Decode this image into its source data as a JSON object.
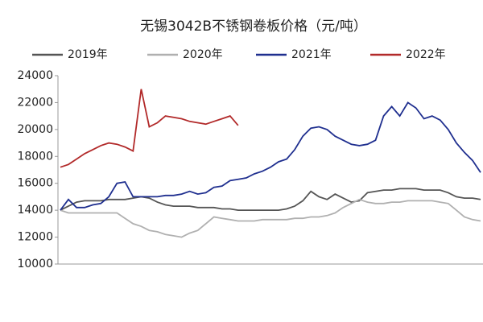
{
  "chart_data": {
    "type": "line",
    "title": "无锡3042B不锈钢卷板价格（元/吨）",
    "categories": [
      null,
      null,
      null,
      null,
      null,
      null,
      null,
      null,
      null,
      null,
      null,
      null,
      null,
      null,
      null,
      null,
      null,
      null,
      null,
      null,
      null,
      null,
      null,
      null,
      null,
      null,
      null,
      null,
      null,
      null,
      null,
      null,
      null,
      null,
      null,
      null,
      null,
      null,
      null,
      null,
      null,
      null,
      null,
      null,
      null,
      null,
      null,
      null,
      null,
      null,
      null,
      null,
      null
    ],
    "series": [
      {
        "name": "2019年",
        "color": "#555555",
        "values": [
          14000,
          14300,
          14600,
          14700,
          14700,
          14700,
          14800,
          14800,
          14800,
          14900,
          15000,
          14900,
          14600,
          14400,
          14300,
          14300,
          14300,
          14200,
          14200,
          14200,
          14100,
          14100,
          14000,
          14000,
          14000,
          14000,
          14000,
          14000,
          14100,
          14300,
          14700,
          15400,
          15000,
          14800,
          15200,
          14900,
          14600,
          14700,
          15300,
          15400,
          15500,
          15500,
          15600,
          15600,
          15600,
          15500,
          15500,
          15500,
          15300,
          15000,
          14900,
          14900,
          14800
        ]
      },
      {
        "name": "2020年",
        "color": "#b0b0b0",
        "values": [
          14000,
          13800,
          13800,
          13800,
          13800,
          13800,
          13800,
          13800,
          13400,
          13000,
          12800,
          12500,
          12400,
          12200,
          12100,
          12000,
          12300,
          12500,
          13000,
          13500,
          13400,
          13300,
          13200,
          13200,
          13200,
          13300,
          13300,
          13300,
          13300,
          13400,
          13400,
          13500,
          13500,
          13600,
          13800,
          14200,
          14500,
          14800,
          14600,
          14500,
          14500,
          14600,
          14600,
          14700,
          14700,
          14700,
          14700,
          14600,
          14500,
          14000,
          13500,
          13300,
          13200
        ]
      },
      {
        "name": "2021年",
        "color": "#1f2f8f",
        "values": [
          14000,
          14800,
          14200,
          14200,
          14400,
          14500,
          15000,
          16000,
          16100,
          15000,
          15000,
          15000,
          15000,
          15100,
          15100,
          15200,
          15400,
          15200,
          15300,
          15700,
          15800,
          16200,
          16300,
          16400,
          16700,
          16900,
          17200,
          17600,
          17800,
          18500,
          19500,
          20100,
          20200,
          20000,
          19500,
          19200,
          18900,
          18800,
          18900,
          19200,
          21000,
          21700,
          21000,
          22000,
          21600,
          20800,
          21000,
          20700,
          20000,
          19000,
          18300,
          17700,
          16800
        ]
      },
      {
        "name": "2022年",
        "color": "#b22a2a",
        "values": [
          17200,
          17400,
          17800,
          18200,
          18500,
          18800,
          19000,
          18900,
          18700,
          18400,
          23000,
          20200,
          20500,
          21000,
          20900,
          20800,
          20600,
          20500,
          20400,
          20600,
          20800,
          21000,
          20300,
          null,
          null,
          null,
          null,
          null,
          null,
          null,
          null,
          null,
          null,
          null,
          null,
          null,
          null,
          null,
          null,
          null,
          null,
          null,
          null,
          null,
          null,
          null,
          null,
          null,
          null,
          null,
          null,
          null,
          null
        ]
      }
    ],
    "ylim": [
      10000,
      24000
    ],
    "yticks": [
      10000,
      12000,
      14000,
      16000,
      18000,
      20000,
      22000,
      24000
    ]
  }
}
